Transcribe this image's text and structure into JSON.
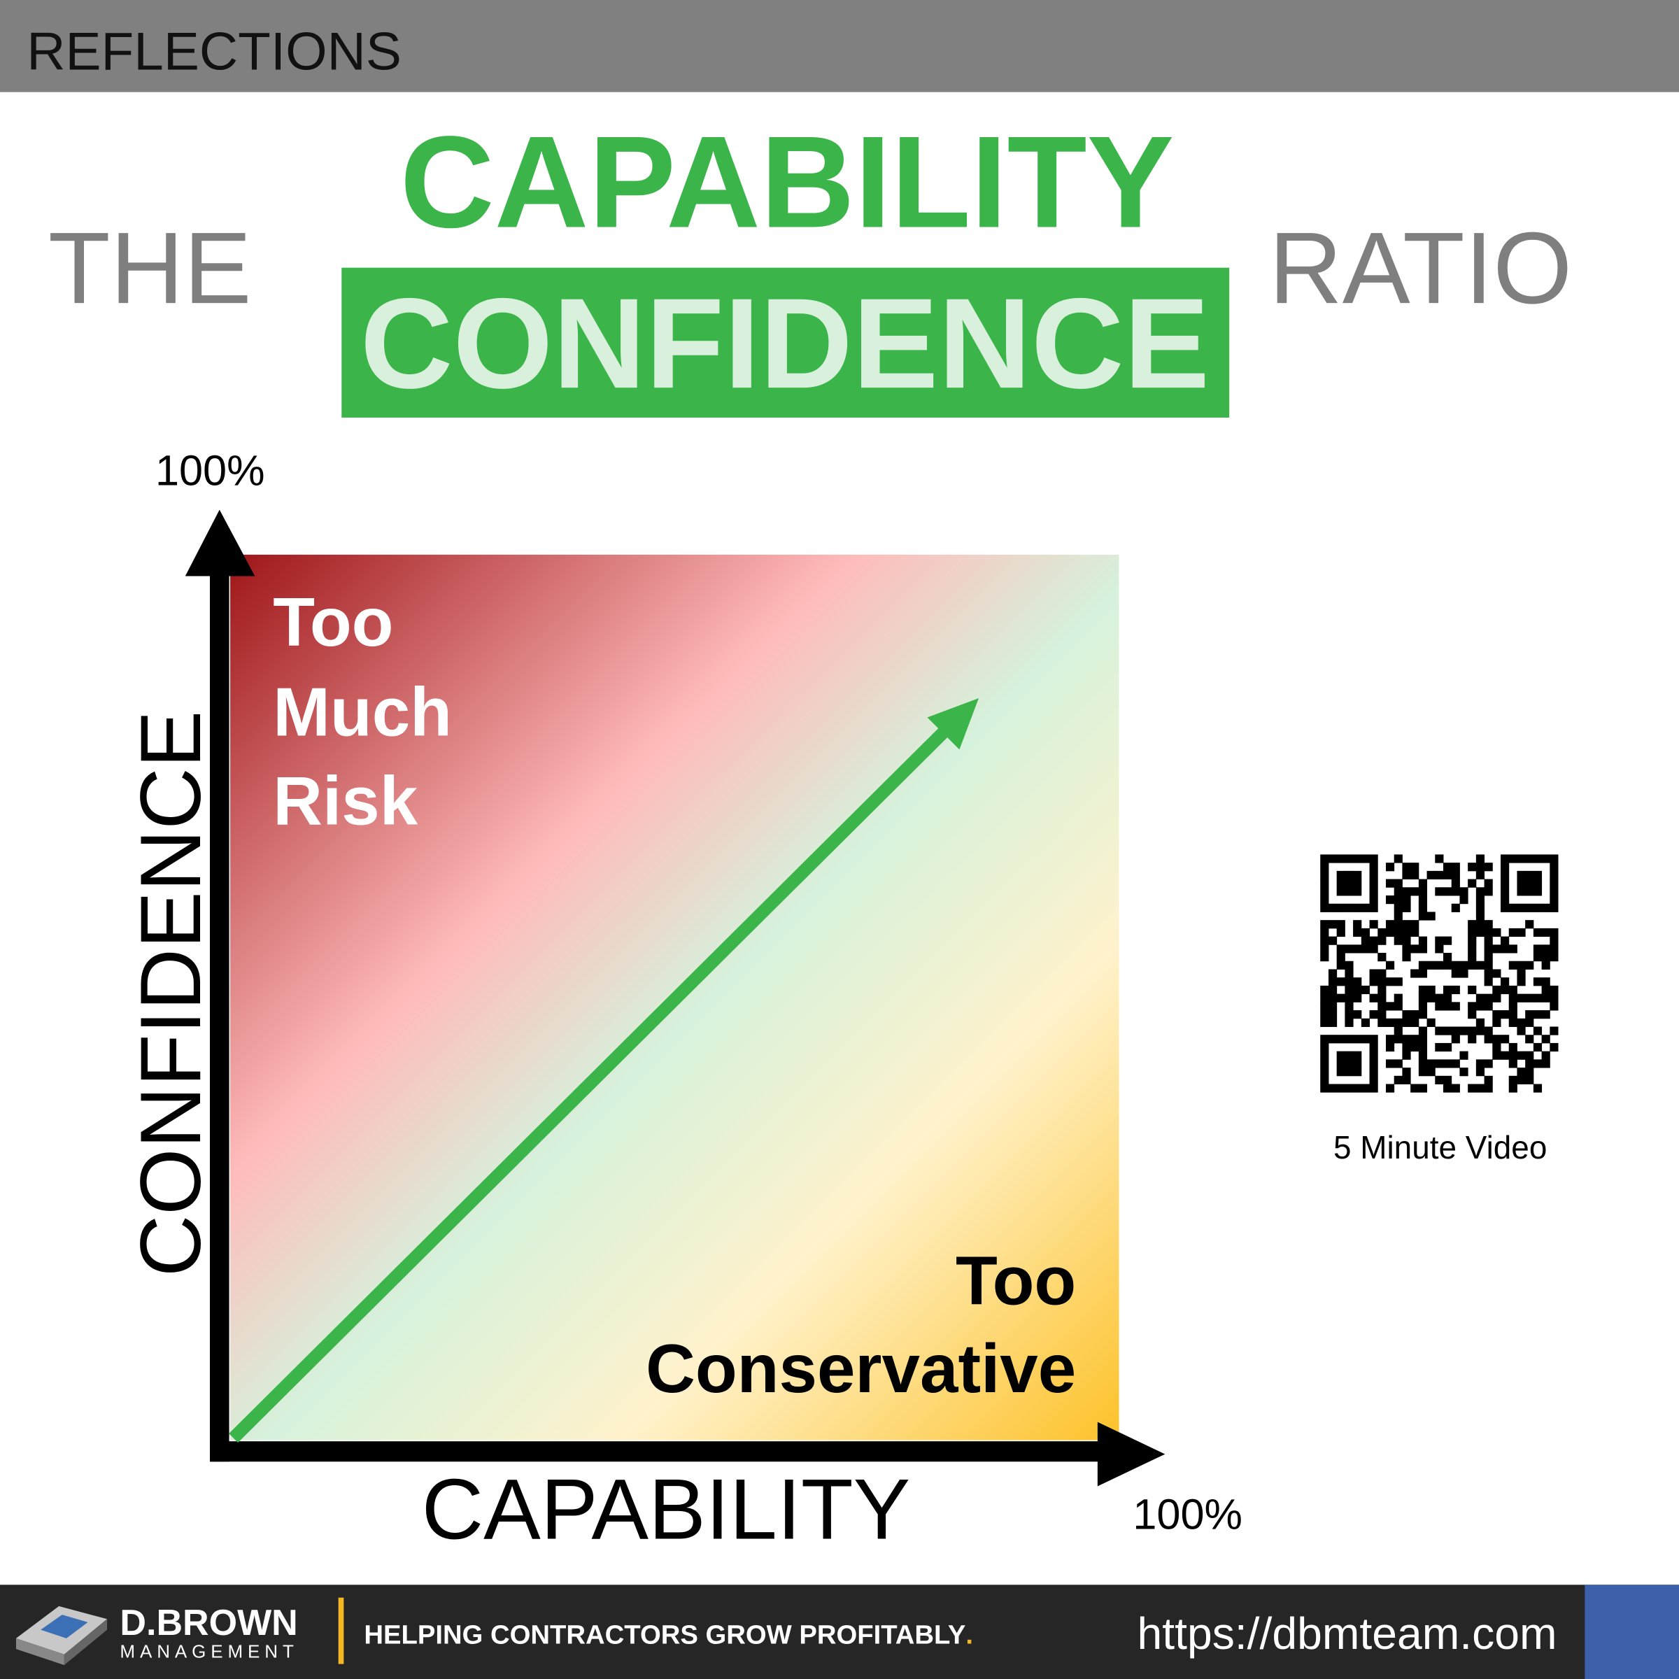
{
  "header": {
    "section": "REFLECTIONS"
  },
  "title": {
    "prefix": "THE",
    "top": "CAPABILITY",
    "bottom": "CONFIDENCE",
    "suffix": "RATIO"
  },
  "diagram": {
    "y_axis_label": "CONFIDENCE",
    "y_axis_max": "100%",
    "x_axis_label": "CAPABILITY",
    "x_axis_max": "100%",
    "top_left": [
      "Too",
      "Much",
      "Risk"
    ],
    "bottom_right": [
      "Too",
      "Conservative"
    ]
  },
  "qr": {
    "caption": "5 Minute Video"
  },
  "footer": {
    "brand": "D.BROWN",
    "brand_sub": "MANAGEMENT",
    "tagline": "HELPING CONTRACTORS GROW PROFITABLY",
    "tagline_dot": ".",
    "url": "https://dbmteam.com"
  }
}
